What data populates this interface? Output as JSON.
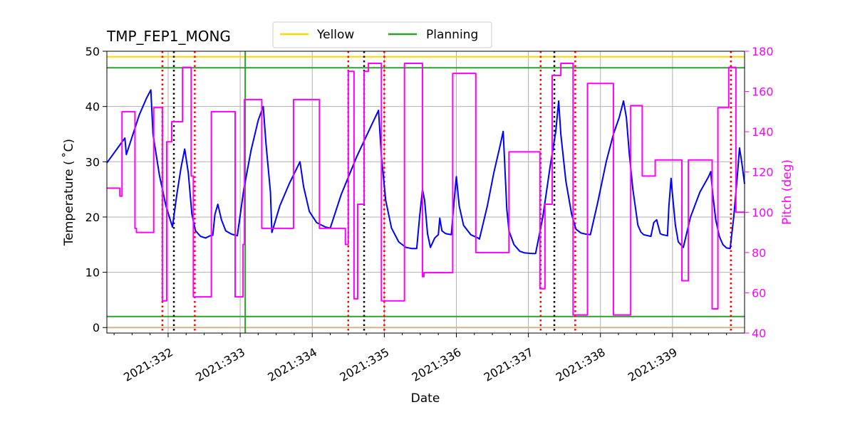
{
  "chart_data": {
    "type": "line",
    "title": "TMP_FEP1_MONG",
    "xlabel": "Date",
    "ylabel": "Temperature ($^\\circ$C)",
    "ylabel_display": "Temperature ( ˚C)",
    "y2label": "Pitch (deg)",
    "xlim": [
      331.15,
      340.0
    ],
    "ylim": [
      -1,
      50
    ],
    "y2lim": [
      40,
      180
    ],
    "xticks": [
      332,
      333,
      334,
      335,
      336,
      337,
      338,
      339
    ],
    "xtick_labels": [
      "2021:332",
      "2021:333",
      "2021:334",
      "2021:335",
      "2021:336",
      "2021:337",
      "2021:338",
      "2021:339"
    ],
    "yticks": [
      0,
      10,
      20,
      30,
      40,
      50
    ],
    "ytick_labels": [
      "0",
      "10",
      "20",
      "30",
      "40",
      "50"
    ],
    "y2ticks": [
      40,
      60,
      80,
      100,
      120,
      140,
      160,
      180
    ],
    "y2tick_labels": [
      "40",
      "60",
      "80",
      "100",
      "120",
      "140",
      "160",
      "180"
    ],
    "grid": true,
    "legend": {
      "placement": "top-center",
      "entries": [
        {
          "label": "Yellow",
          "color": "#ffd700"
        },
        {
          "label": "Planning",
          "color": "#2ca02c"
        }
      ]
    },
    "hlines": [
      {
        "y": 49,
        "color": "#ffd700",
        "axis": "temperature"
      },
      {
        "y": 47,
        "color": "#2ca02c",
        "axis": "temperature"
      },
      {
        "y": 2,
        "color": "#2ca02c",
        "axis": "temperature"
      },
      {
        "y": 0,
        "color": "#d2b48c",
        "axis": "temperature"
      }
    ],
    "vlines": [
      {
        "x": 331.92,
        "color": "#ff0000",
        "style": "dotted"
      },
      {
        "x": 332.08,
        "color": "#000000",
        "style": "dotted"
      },
      {
        "x": 332.37,
        "color": "#ff0000",
        "style": "dotted"
      },
      {
        "x": 333.07,
        "color": "#2ca02c",
        "style": "solid"
      },
      {
        "x": 334.5,
        "color": "#ff0000",
        "style": "dotted"
      },
      {
        "x": 334.72,
        "color": "#000000",
        "style": "dotted"
      },
      {
        "x": 335.0,
        "color": "#ff0000",
        "style": "dotted"
      },
      {
        "x": 337.17,
        "color": "#ff0000",
        "style": "dotted"
      },
      {
        "x": 337.36,
        "color": "#000000",
        "style": "dotted"
      },
      {
        "x": 337.65,
        "color": "#ff0000",
        "style": "dotted"
      },
      {
        "x": 339.81,
        "color": "#ff0000",
        "style": "dotted"
      }
    ],
    "series": [
      {
        "axis": "temperature",
        "color": "#0000ff",
        "points": [
          [
            331.15,
            29.8
          ],
          [
            331.3,
            32.5
          ],
          [
            331.4,
            34.3
          ],
          [
            331.42,
            31.3
          ],
          [
            331.5,
            34.5
          ],
          [
            331.6,
            38.5
          ],
          [
            331.7,
            41.5
          ],
          [
            331.76,
            43.0
          ],
          [
            331.79,
            35.0
          ],
          [
            331.88,
            27.5
          ],
          [
            331.97,
            22.0
          ],
          [
            332.06,
            18.2
          ],
          [
            332.12,
            24.0
          ],
          [
            332.18,
            29.0
          ],
          [
            332.23,
            32.3
          ],
          [
            332.28,
            28.0
          ],
          [
            332.33,
            20.5
          ],
          [
            332.38,
            17.5
          ],
          [
            332.45,
            16.5
          ],
          [
            332.52,
            16.2
          ],
          [
            332.58,
            16.6
          ],
          [
            332.62,
            16.7
          ],
          [
            332.65,
            20.5
          ],
          [
            332.69,
            22.3
          ],
          [
            332.74,
            19.5
          ],
          [
            332.8,
            17.5
          ],
          [
            332.88,
            16.9
          ],
          [
            332.96,
            16.6
          ],
          [
            333.05,
            25.0
          ],
          [
            333.15,
            32.0
          ],
          [
            333.25,
            37.5
          ],
          [
            333.32,
            40.0
          ],
          [
            333.36,
            33.0
          ],
          [
            333.42,
            24.5
          ],
          [
            333.44,
            17.2
          ],
          [
            333.55,
            22.0
          ],
          [
            333.68,
            26.0
          ],
          [
            333.83,
            30.0
          ],
          [
            333.88,
            25.5
          ],
          [
            333.96,
            21.0
          ],
          [
            334.06,
            19.0
          ],
          [
            334.18,
            18.2
          ],
          [
            334.25,
            18.0
          ],
          [
            334.4,
            24.0
          ],
          [
            334.62,
            31.0
          ],
          [
            334.8,
            36.0
          ],
          [
            334.92,
            39.3
          ],
          [
            334.96,
            31.0
          ],
          [
            335.02,
            23.0
          ],
          [
            335.1,
            18.0
          ],
          [
            335.2,
            15.5
          ],
          [
            335.3,
            14.5
          ],
          [
            335.38,
            14.3
          ],
          [
            335.45,
            14.3
          ],
          [
            335.49,
            20.0
          ],
          [
            335.53,
            25.0
          ],
          [
            335.56,
            23.0
          ],
          [
            335.6,
            17.0
          ],
          [
            335.64,
            14.5
          ],
          [
            335.7,
            16.2
          ],
          [
            335.75,
            16.8
          ],
          [
            335.77,
            19.8
          ],
          [
            335.8,
            17.5
          ],
          [
            335.85,
            17.0
          ],
          [
            335.93,
            16.8
          ],
          [
            335.97,
            23.0
          ],
          [
            336.0,
            27.3
          ],
          [
            336.04,
            22.0
          ],
          [
            336.1,
            18.5
          ],
          [
            336.2,
            16.8
          ],
          [
            336.3,
            16.2
          ],
          [
            336.32,
            16.0
          ],
          [
            336.43,
            22.0
          ],
          [
            336.52,
            28.0
          ],
          [
            336.6,
            32.5
          ],
          [
            336.65,
            35.5
          ],
          [
            336.67,
            30.0
          ],
          [
            336.7,
            21.5
          ],
          [
            336.73,
            17.5
          ],
          [
            336.8,
            15.0
          ],
          [
            336.88,
            13.8
          ],
          [
            336.95,
            13.5
          ],
          [
            337.05,
            13.4
          ],
          [
            337.1,
            13.4
          ],
          [
            337.2,
            20.0
          ],
          [
            337.3,
            29.0
          ],
          [
            337.38,
            35.5
          ],
          [
            337.42,
            41.0
          ],
          [
            337.45,
            35.0
          ],
          [
            337.52,
            26.5
          ],
          [
            337.6,
            20.5
          ],
          [
            337.66,
            17.8
          ],
          [
            337.73,
            17.1
          ],
          [
            337.8,
            16.9
          ],
          [
            337.86,
            16.8
          ],
          [
            337.96,
            22.5
          ],
          [
            338.08,
            30.0
          ],
          [
            338.18,
            35.0
          ],
          [
            338.26,
            38.0
          ],
          [
            338.3,
            40.0
          ],
          [
            338.32,
            41.0
          ],
          [
            338.36,
            38.0
          ],
          [
            338.4,
            31.5
          ],
          [
            338.45,
            25.0
          ],
          [
            338.52,
            18.5
          ],
          [
            338.56,
            17.3
          ],
          [
            338.6,
            16.8
          ],
          [
            338.7,
            16.5
          ],
          [
            338.74,
            19.0
          ],
          [
            338.78,
            19.5
          ],
          [
            338.83,
            17.0
          ],
          [
            338.86,
            16.8
          ],
          [
            338.9,
            16.7
          ],
          [
            338.93,
            16.6
          ],
          [
            338.95,
            22.0
          ],
          [
            338.98,
            27.0
          ],
          [
            339.0,
            24.0
          ],
          [
            339.04,
            18.5
          ],
          [
            339.08,
            15.5
          ],
          [
            339.15,
            14.5
          ],
          [
            339.25,
            20.0
          ],
          [
            339.38,
            24.5
          ],
          [
            339.5,
            27.3
          ],
          [
            339.53,
            28.2
          ],
          [
            339.56,
            24.0
          ],
          [
            339.6,
            19.5
          ],
          [
            339.65,
            16.5
          ],
          [
            339.7,
            15.0
          ],
          [
            339.75,
            14.4
          ],
          [
            339.8,
            14.3
          ],
          [
            339.85,
            20.0
          ],
          [
            339.9,
            27.5
          ],
          [
            339.93,
            32.5
          ],
          [
            339.96,
            30.0
          ],
          [
            340.0,
            26.0
          ]
        ]
      },
      {
        "axis": "pitch",
        "color": "#ff00ff",
        "points": [
          [
            331.15,
            112
          ],
          [
            331.33,
            112
          ],
          [
            331.33,
            108
          ],
          [
            331.36,
            108
          ],
          [
            331.36,
            150
          ],
          [
            331.54,
            150
          ],
          [
            331.54,
            92
          ],
          [
            331.56,
            92
          ],
          [
            331.56,
            90
          ],
          [
            331.8,
            90
          ],
          [
            331.8,
            152
          ],
          [
            331.92,
            152
          ],
          [
            331.92,
            56
          ],
          [
            331.98,
            56
          ],
          [
            331.98,
            135
          ],
          [
            332.05,
            135
          ],
          [
            332.05,
            145
          ],
          [
            332.2,
            145
          ],
          [
            332.2,
            172
          ],
          [
            332.32,
            172
          ],
          [
            332.32,
            118
          ],
          [
            332.35,
            118
          ],
          [
            332.35,
            58
          ],
          [
            332.6,
            58
          ],
          [
            332.6,
            150
          ],
          [
            332.93,
            150
          ],
          [
            332.93,
            58
          ],
          [
            333.04,
            58
          ],
          [
            333.04,
            84
          ],
          [
            333.06,
            84
          ],
          [
            333.06,
            156
          ],
          [
            333.3,
            156
          ],
          [
            333.3,
            92
          ],
          [
            333.74,
            92
          ],
          [
            333.74,
            156
          ],
          [
            334.1,
            156
          ],
          [
            334.1,
            92
          ],
          [
            334.46,
            92
          ],
          [
            334.46,
            84
          ],
          [
            334.5,
            84
          ],
          [
            334.5,
            170
          ],
          [
            334.58,
            170
          ],
          [
            334.58,
            57
          ],
          [
            334.63,
            57
          ],
          [
            334.63,
            104
          ],
          [
            334.72,
            104
          ],
          [
            334.72,
            170
          ],
          [
            334.78,
            170
          ],
          [
            334.78,
            174
          ],
          [
            334.96,
            174
          ],
          [
            334.96,
            56
          ],
          [
            335.28,
            56
          ],
          [
            335.28,
            174
          ],
          [
            335.53,
            174
          ],
          [
            335.53,
            68
          ],
          [
            335.55,
            68
          ],
          [
            335.55,
            70
          ],
          [
            335.95,
            70
          ],
          [
            335.95,
            169
          ],
          [
            336.27,
            169
          ],
          [
            336.27,
            80
          ],
          [
            336.73,
            80
          ],
          [
            336.73,
            130
          ],
          [
            337.16,
            130
          ],
          [
            337.16,
            62
          ],
          [
            337.23,
            62
          ],
          [
            337.23,
            104
          ],
          [
            337.33,
            104
          ],
          [
            337.33,
            168
          ],
          [
            337.45,
            168
          ],
          [
            337.45,
            174
          ],
          [
            337.62,
            174
          ],
          [
            337.62,
            49
          ],
          [
            337.82,
            49
          ],
          [
            337.82,
            164
          ],
          [
            338.18,
            164
          ],
          [
            338.18,
            49
          ],
          [
            338.42,
            49
          ],
          [
            338.42,
            153
          ],
          [
            338.58,
            153
          ],
          [
            338.58,
            118
          ],
          [
            338.76,
            118
          ],
          [
            338.76,
            126
          ],
          [
            339.13,
            126
          ],
          [
            339.13,
            66
          ],
          [
            339.22,
            66
          ],
          [
            339.22,
            126
          ],
          [
            339.55,
            126
          ],
          [
            339.55,
            52
          ],
          [
            339.63,
            52
          ],
          [
            339.63,
            152
          ],
          [
            339.78,
            152
          ],
          [
            339.78,
            172
          ],
          [
            339.88,
            172
          ],
          [
            339.88,
            100
          ],
          [
            340.0,
            100
          ]
        ]
      }
    ]
  }
}
